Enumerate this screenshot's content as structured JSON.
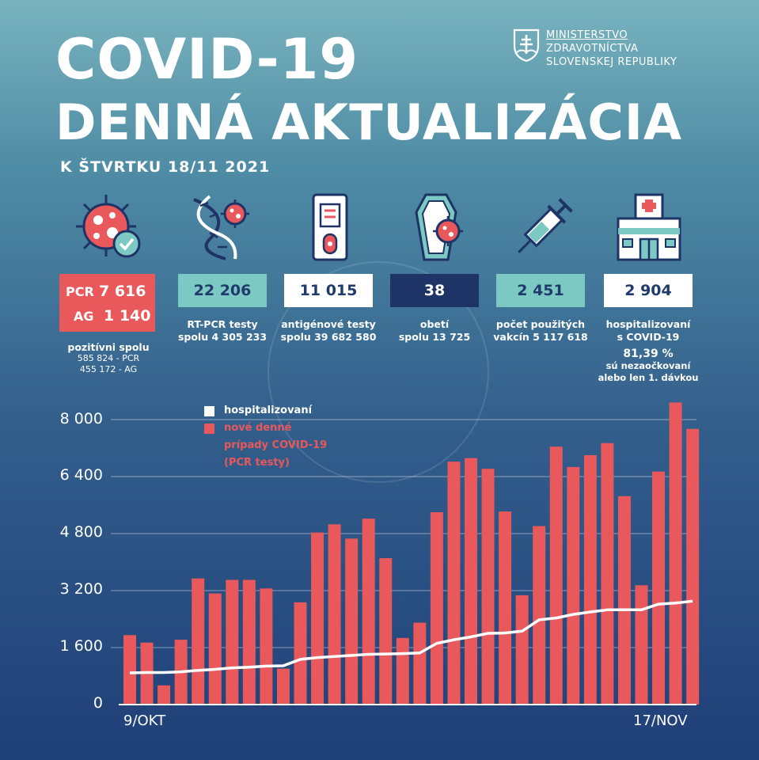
{
  "header": {
    "title_line1": "COVID-19",
    "title_line2": "DENNÁ AKTUALIZÁCIA",
    "subtitle": "K ŠTVRTKU 18/11 2021",
    "ministry": [
      "MINISTERSTVO",
      "ZDRAVOTNÍCTVA",
      "SLOVENSKEJ REPUBLIKY"
    ]
  },
  "stats": {
    "positive": {
      "pcr_label": "PCR",
      "pcr_value": "7 616",
      "ag_label": "AG",
      "ag_value": "1 140",
      "caption": [
        "pozitívni spolu",
        "585 824 - PCR",
        "455 172 - AG"
      ]
    },
    "rtpcr": {
      "value": "22 206",
      "caption": [
        "RT-PCR testy",
        "spolu 4 305 233"
      ]
    },
    "antigen": {
      "value": "11 015",
      "caption": [
        "antigénové testy",
        "spolu 39 682 580"
      ]
    },
    "deaths": {
      "value": "38",
      "caption": [
        "obetí",
        "spolu 13 725"
      ]
    },
    "vaccines": {
      "value": "2 451",
      "caption": [
        "počet použitých",
        "vakcín   5 117 618"
      ]
    },
    "hospital": {
      "value": "2 904",
      "caption": [
        "hospitalizovaní",
        "s COVID-19"
      ],
      "pct": "81,39 %",
      "pct_caption": [
        "sú nezaočkovaní",
        "alebo len 1. dávkou"
      ]
    }
  },
  "colors": {
    "bar": "#e9585a",
    "line": "#ffffff",
    "teal": "#7cc9c4",
    "navy": "#1e3366"
  },
  "chart_data": {
    "type": "bar",
    "title": "",
    "x_start_label": "9/OKT",
    "x_end_label": "17/NOV",
    "ylim": [
      0,
      8000
    ],
    "yticks": [
      0,
      1600,
      3200,
      4800,
      6400,
      8000
    ],
    "ytick_labels": [
      "0",
      "1 600",
      "3 200",
      "4 800",
      "6 400",
      "8 000"
    ],
    "legend": {
      "line_label": "hospitalizovaní",
      "bar_label": [
        "nové denné",
        "prípady COVID-19",
        "(PCR testy)"
      ]
    },
    "series": [
      {
        "name": "nové denné prípady COVID-19 (PCR testy)",
        "type": "bar",
        "values": [
          1950,
          1740,
          540,
          1820,
          3540,
          3120,
          3500,
          3500,
          3260,
          1010,
          2870,
          4830,
          5060,
          4660,
          5220,
          4110,
          1870,
          2300,
          5400,
          6820,
          6920,
          6620,
          5420,
          3070,
          5010,
          7240,
          6670,
          7000,
          7340,
          5850,
          3350,
          6540,
          8480,
          7740
        ]
      },
      {
        "name": "hospitalizovaní",
        "type": "line",
        "values": [
          890,
          900,
          900,
          920,
          960,
          990,
          1030,
          1050,
          1080,
          1090,
          1270,
          1320,
          1350,
          1380,
          1410,
          1420,
          1430,
          1450,
          1720,
          1820,
          1900,
          2000,
          2010,
          2060,
          2380,
          2430,
          2530,
          2600,
          2660,
          2660,
          2660,
          2820,
          2850,
          2904
        ]
      }
    ]
  }
}
